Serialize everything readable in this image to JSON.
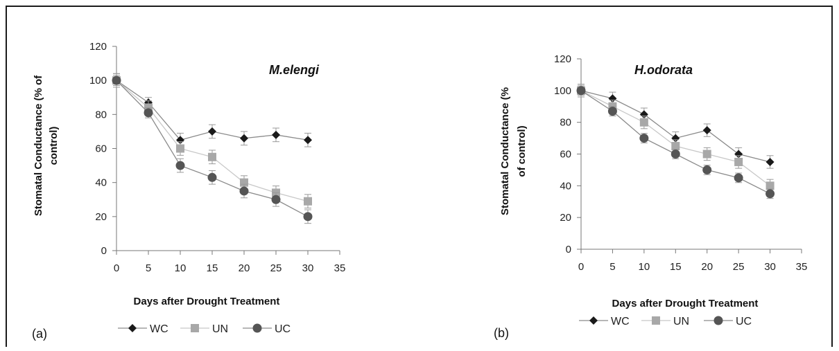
{
  "chart_data": [
    {
      "type": "line",
      "title": "M.elengi",
      "panel_label": "(a)",
      "xlabel": "Days after Drought Treatment",
      "ylabel": "Stomatal Conductance (% of control)",
      "x": [
        0,
        5,
        10,
        15,
        20,
        25,
        30
      ],
      "xlim": [
        0,
        35
      ],
      "ylim": [
        0,
        120
      ],
      "xticks": [
        "0",
        "5",
        "10",
        "15",
        "20",
        "25",
        "30",
        "35"
      ],
      "yticks": [
        "0",
        "20",
        "40",
        "60",
        "80",
        "100",
        "120"
      ],
      "legend_position": "bottom",
      "series": [
        {
          "name": "WC",
          "marker": "diamond",
          "color": "#1a1a1a",
          "values": [
            100,
            87,
            65,
            70,
            66,
            68,
            65
          ],
          "errors": [
            4,
            3,
            4,
            4,
            4,
            4,
            4
          ]
        },
        {
          "name": "UN",
          "marker": "square",
          "color": "#a8a8a8",
          "values": [
            100,
            84,
            60,
            55,
            40,
            34,
            29
          ],
          "errors": [
            4,
            4,
            4,
            4,
            4,
            4,
            4
          ]
        },
        {
          "name": "UC",
          "marker": "circle",
          "color": "#555555",
          "values": [
            100,
            81,
            50,
            43,
            35,
            30,
            20
          ],
          "errors": [
            3,
            3,
            4,
            4,
            4,
            4,
            4
          ]
        }
      ]
    },
    {
      "type": "line",
      "title": "H.odorata",
      "panel_label": "(b)",
      "xlabel": "Days after Drought Treatment",
      "ylabel": "Stomatal Conductance (% of control)",
      "x": [
        0,
        5,
        10,
        15,
        20,
        25,
        30
      ],
      "xlim": [
        0,
        35
      ],
      "ylim": [
        0,
        120
      ],
      "xticks": [
        "0",
        "5",
        "10",
        "15",
        "20",
        "25",
        "30",
        "35"
      ],
      "yticks": [
        "0",
        "20",
        "40",
        "60",
        "80",
        "100",
        "120"
      ],
      "legend_position": "bottom",
      "series": [
        {
          "name": "WC",
          "marker": "diamond",
          "color": "#1a1a1a",
          "values": [
            100,
            95,
            85,
            70,
            75,
            60,
            55
          ],
          "errors": [
            4,
            4,
            4,
            4,
            4,
            4,
            4
          ]
        },
        {
          "name": "UN",
          "marker": "square",
          "color": "#a8a8a8",
          "values": [
            100,
            90,
            80,
            65,
            60,
            55,
            40
          ],
          "errors": [
            4,
            4,
            4,
            4,
            4,
            4,
            4
          ]
        },
        {
          "name": "UC",
          "marker": "circle",
          "color": "#555555",
          "values": [
            100,
            87,
            70,
            60,
            50,
            45,
            35
          ],
          "errors": [
            3,
            3,
            3,
            3,
            3,
            3,
            3
          ]
        }
      ]
    }
  ]
}
